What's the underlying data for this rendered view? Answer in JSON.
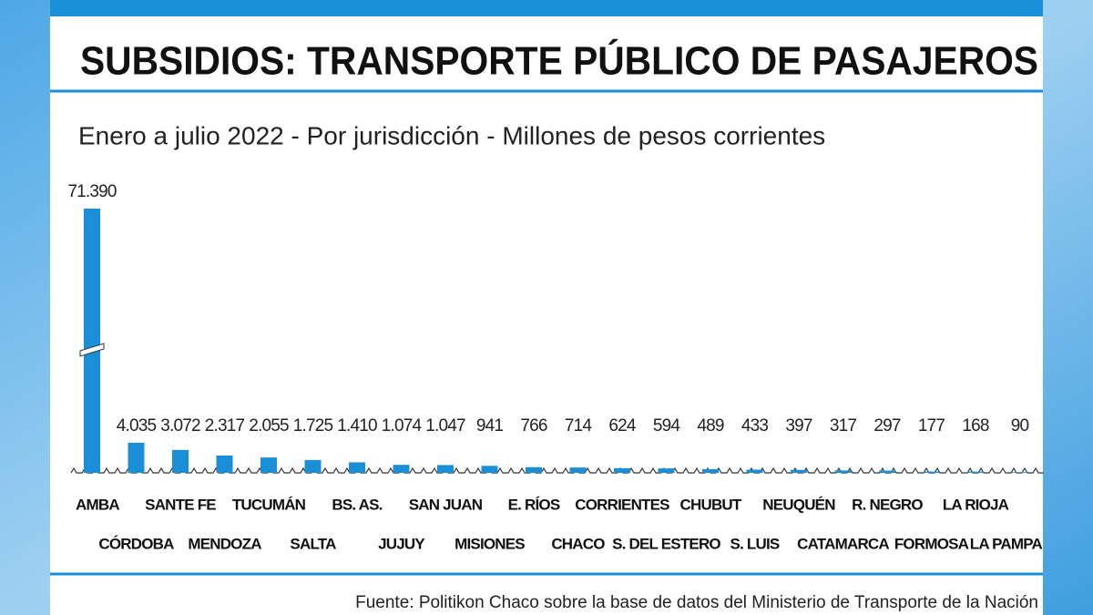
{
  "chart_data": {
    "type": "bar",
    "title": "SUBSIDIOS: TRANSPORTE PÚBLICO DE PASAJEROS",
    "subtitle": "Enero a julio 2022 - Por jurisdicción - Millones de pesos corrientes",
    "source": "Fuente: Politikon Chaco sobre la base de datos del Ministerio de Transporte de la Nación",
    "categories": [
      "AMBA",
      "CÓRDOBA",
      "SANTE FE",
      "MENDOZA",
      "TUCUMÁN",
      "SALTA",
      "BS. AS.",
      "JUJUY",
      "SAN JUAN",
      "MISIONES",
      "E. RÍOS",
      "CHACO",
      "CORRIENTES",
      "S. DEL ESTERO",
      "CHUBUT",
      "S. LUIS",
      "NEUQUÉN",
      "CATAMARCA",
      "R. NEGRO",
      "FORMOSA",
      "LA RIOJA",
      "LA PAMPA"
    ],
    "values": [
      71390,
      4035,
      3072,
      2317,
      2055,
      1725,
      1410,
      1074,
      1047,
      941,
      766,
      714,
      624,
      594,
      489,
      433,
      397,
      317,
      297,
      177,
      168,
      90
    ],
    "value_labels": [
      "71.390",
      "4.035",
      "3.072",
      "2.317",
      "2.055",
      "1.725",
      "1.410",
      "1.074",
      "1.047",
      "941",
      "766",
      "714",
      "624",
      "594",
      "489",
      "433",
      "397",
      "317",
      "297",
      "177",
      "168",
      "90"
    ],
    "color": "#1a8fd8"
  }
}
